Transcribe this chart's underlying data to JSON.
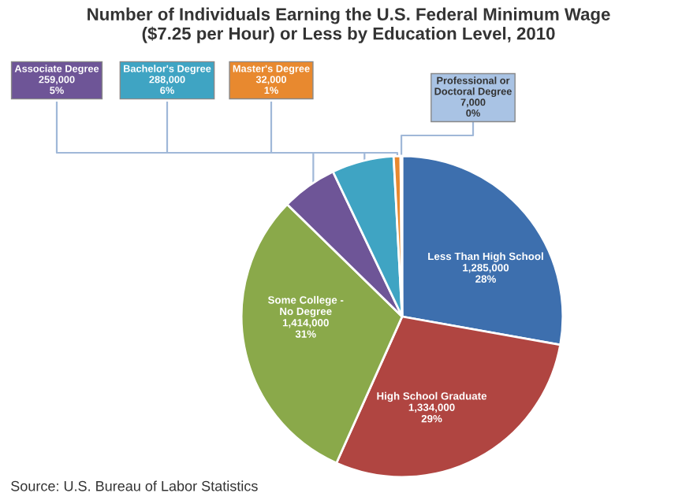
{
  "chart_data": {
    "type": "pie",
    "title": "Number of Individuals Earning the U.S. Federal Minimum Wage\n($7.25 per Hour) or Less by Education Level, 2010",
    "categories": [
      "Less Than High School",
      "High School Graduate",
      "Some College -\nNo Degree",
      "Associate Degree",
      "Bachelor's Degree",
      "Master's Degree",
      "Professional or\nDoctoral Degree"
    ],
    "values": [
      1285000,
      1334000,
      1414000,
      259000,
      288000,
      32000,
      7000
    ],
    "value_labels": [
      "1,285,000\n28%",
      "1,334,000\n29%",
      "1,414,000\n31%",
      "259,000\n5%",
      "288,000\n6%",
      "32,000\n1%",
      "7,000\n0%"
    ],
    "colors": [
      "#3d6fae",
      "#b04541",
      "#8aa94a",
      "#6e5597",
      "#3fa4c3",
      "#e8892f",
      "#a9c3e4"
    ],
    "annotations": [
      "Source: U.S. Bureau of Labor Statistics"
    ]
  }
}
